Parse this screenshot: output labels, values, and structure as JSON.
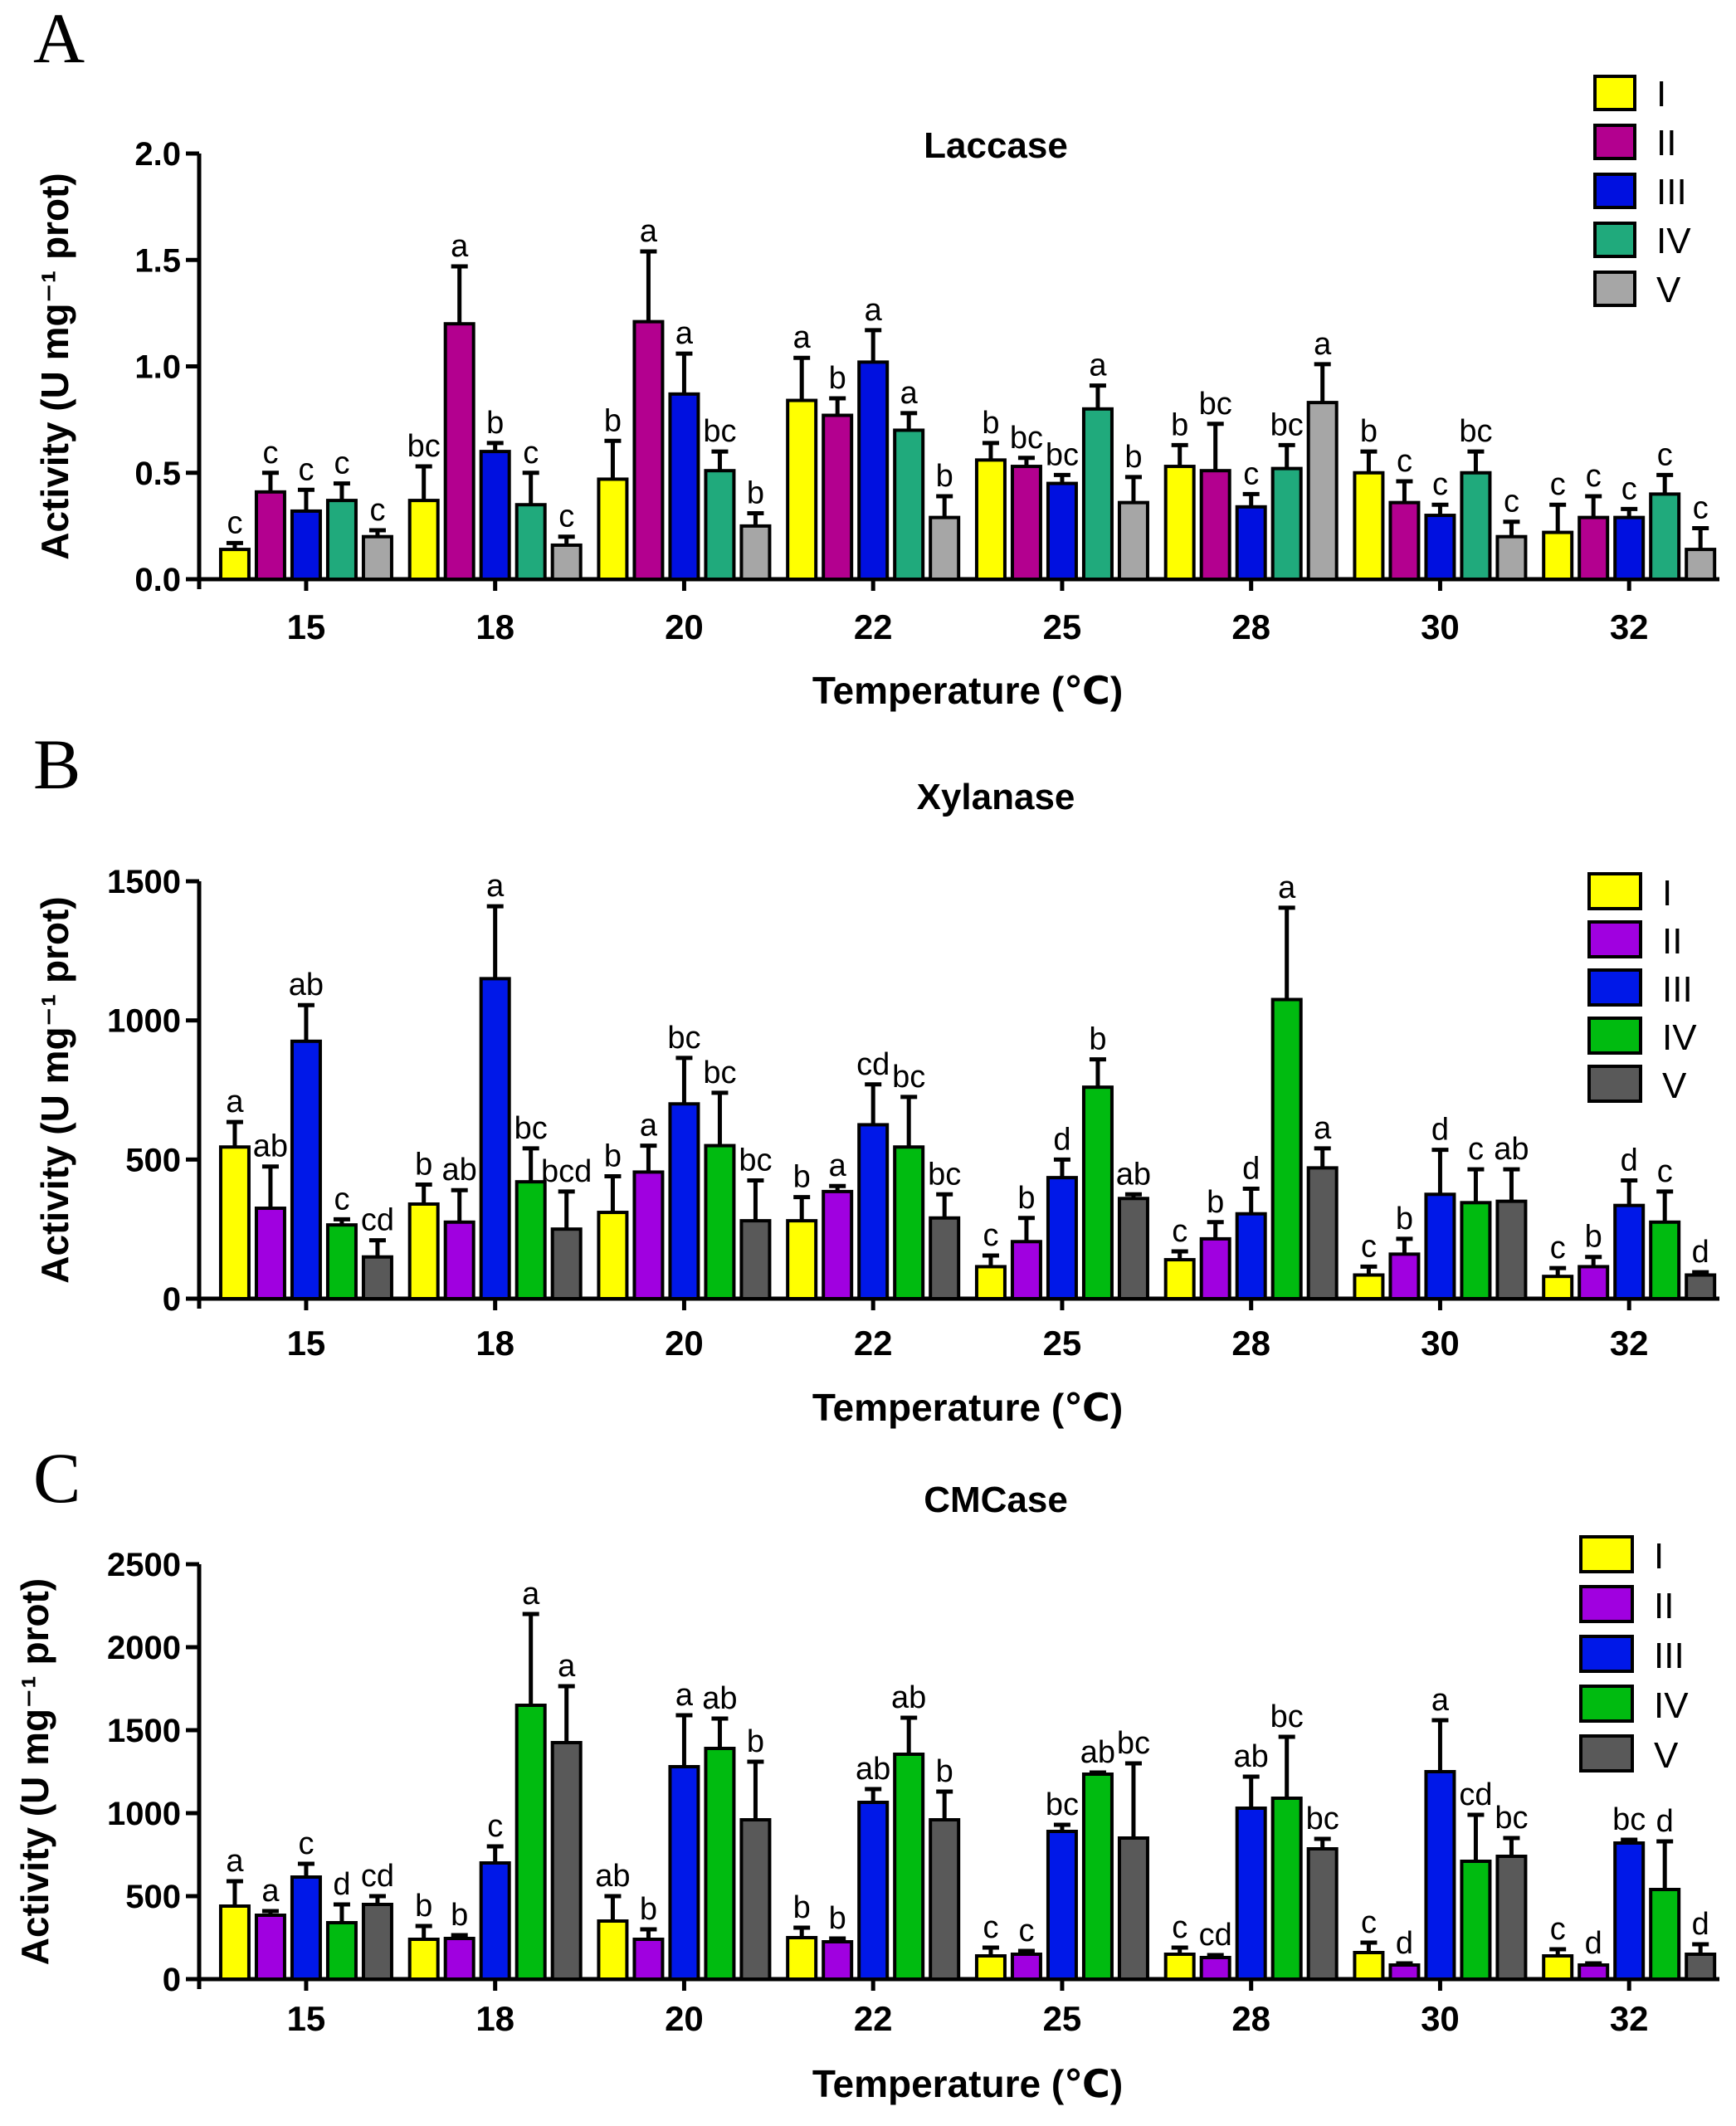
{
  "figure": {
    "series_colors": {
      "A": [
        "#ffff00",
        "#b3008f",
        "#0010e0",
        "#20aa7c",
        "#a6a6a6"
      ],
      "B": [
        "#ffff00",
        "#a000e0",
        "#0018e8",
        "#00bb10",
        "#595959"
      ],
      "C": [
        "#ffff00",
        "#a000e0",
        "#0018e8",
        "#00bb10",
        "#595959"
      ]
    }
  },
  "chart_data": [
    {
      "panel": "A",
      "type": "bar",
      "title": "Laccase",
      "xlabel": "Temperature (℃)",
      "ylabel": "Activity (U mg⁻¹ prot)",
      "ylim": [
        0,
        2.0
      ],
      "yticks": [
        "0.0",
        "0.5",
        "1.0",
        "1.5",
        "2.0"
      ],
      "categories": [
        "15",
        "18",
        "20",
        "22",
        "25",
        "28",
        "30",
        "32"
      ],
      "legend": [
        "I",
        "II",
        "III",
        "IV",
        "V"
      ],
      "series": [
        {
          "name": "I",
          "values": [
            0.14,
            0.37,
            0.47,
            0.84,
            0.56,
            0.53,
            0.5,
            0.22
          ],
          "errors": [
            0.03,
            0.16,
            0.18,
            0.2,
            0.08,
            0.1,
            0.1,
            0.13
          ],
          "labels": [
            "c",
            "bc",
            "b",
            "a",
            "b",
            "b",
            "b",
            "c"
          ]
        },
        {
          "name": "II",
          "values": [
            0.41,
            1.2,
            1.21,
            0.77,
            0.53,
            0.51,
            0.36,
            0.29
          ],
          "errors": [
            0.09,
            0.27,
            0.33,
            0.08,
            0.04,
            0.22,
            0.1,
            0.1
          ],
          "labels": [
            "c",
            "a",
            "a",
            "b",
            "bc",
            "bc",
            "c",
            "c"
          ]
        },
        {
          "name": "III",
          "values": [
            0.32,
            0.6,
            0.87,
            1.02,
            0.45,
            0.34,
            0.3,
            0.29
          ],
          "errors": [
            0.1,
            0.04,
            0.19,
            0.15,
            0.04,
            0.06,
            0.05,
            0.04
          ],
          "labels": [
            "c",
            "b",
            "a",
            "a",
            "bc",
            "c",
            "c",
            "c"
          ]
        },
        {
          "name": "IV",
          "values": [
            0.37,
            0.35,
            0.51,
            0.7,
            0.8,
            0.52,
            0.5,
            0.4
          ],
          "errors": [
            0.08,
            0.15,
            0.09,
            0.08,
            0.11,
            0.11,
            0.1,
            0.09
          ],
          "labels": [
            "c",
            "c",
            "bc",
            "a",
            "a",
            "bc",
            "bc",
            "c"
          ]
        },
        {
          "name": "V",
          "values": [
            0.2,
            0.16,
            0.25,
            0.29,
            0.36,
            0.83,
            0.2,
            0.14
          ],
          "errors": [
            0.03,
            0.04,
            0.06,
            0.1,
            0.12,
            0.18,
            0.07,
            0.1
          ],
          "labels": [
            "c",
            "c",
            "b",
            "b",
            "b",
            "a",
            "c",
            "c"
          ]
        }
      ]
    },
    {
      "panel": "B",
      "type": "bar",
      "title": "Xylanase",
      "xlabel": "Temperature (℃)",
      "ylabel": "Activity (U mg⁻¹ prot)",
      "ylim": [
        0,
        1500
      ],
      "yticks": [
        "0",
        "500",
        "1000",
        "1500"
      ],
      "categories": [
        "15",
        "18",
        "20",
        "22",
        "25",
        "28",
        "30",
        "32"
      ],
      "legend": [
        "I",
        "II",
        "III",
        "IV",
        "V"
      ],
      "series": [
        {
          "name": "I",
          "values": [
            545,
            340,
            310,
            280,
            115,
            140,
            85,
            80
          ],
          "errors": [
            90,
            70,
            130,
            85,
            40,
            30,
            30,
            30
          ],
          "labels": [
            "a",
            "b",
            "b",
            "b",
            "c",
            "c",
            "c",
            "c"
          ]
        },
        {
          "name": "II",
          "values": [
            325,
            275,
            455,
            385,
            205,
            215,
            160,
            115
          ],
          "errors": [
            150,
            115,
            95,
            20,
            85,
            60,
            55,
            35
          ],
          "labels": [
            "ab",
            "ab",
            "a",
            "a",
            "b",
            "b",
            "b",
            "b"
          ]
        },
        {
          "name": "III",
          "values": [
            925,
            1150,
            700,
            625,
            435,
            305,
            375,
            335
          ],
          "errors": [
            130,
            260,
            165,
            145,
            65,
            90,
            160,
            90
          ],
          "labels": [
            "ab",
            "a",
            "bc",
            "cd",
            "d",
            "d",
            "d",
            "d"
          ]
        },
        {
          "name": "IV",
          "values": [
            265,
            420,
            550,
            545,
            760,
            1075,
            345,
            275
          ],
          "errors": [
            20,
            120,
            190,
            180,
            100,
            330,
            120,
            110
          ],
          "labels": [
            "c",
            "bc",
            "bc",
            "bc",
            "b",
            "a",
            "c",
            "c"
          ]
        },
        {
          "name": "V",
          "values": [
            150,
            250,
            280,
            290,
            360,
            470,
            350,
            85
          ],
          "errors": [
            60,
            135,
            145,
            85,
            15,
            70,
            115,
            10
          ],
          "labels": [
            "cd",
            "bcd",
            "bc",
            "bc",
            "ab",
            "a",
            "ab",
            "d"
          ]
        }
      ]
    },
    {
      "panel": "C",
      "type": "bar",
      "title": "CMCase",
      "xlabel": "Temperature (℃)",
      "ylabel": "Activity (U mg⁻¹ prot)",
      "ylim": [
        0,
        2500
      ],
      "yticks": [
        "0",
        "500",
        "1000",
        "1500",
        "2000",
        "2500"
      ],
      "categories": [
        "15",
        "18",
        "20",
        "22",
        "25",
        "28",
        "30",
        "32"
      ],
      "legend": [
        "I",
        "II",
        "III",
        "IV",
        "V"
      ],
      "series": [
        {
          "name": "I",
          "values": [
            440,
            240,
            350,
            250,
            140,
            150,
            160,
            140
          ],
          "errors": [
            150,
            80,
            150,
            60,
            50,
            40,
            60,
            40
          ],
          "labels": [
            "a",
            "b",
            "ab",
            "b",
            "c",
            "c",
            "c",
            "c"
          ]
        },
        {
          "name": "II",
          "values": [
            385,
            245,
            240,
            225,
            150,
            130,
            85,
            85
          ],
          "errors": [
            25,
            20,
            60,
            20,
            20,
            15,
            10,
            10
          ],
          "labels": [
            "a",
            "b",
            "b",
            "b",
            "c",
            "cd",
            "d",
            "d"
          ]
        },
        {
          "name": "III",
          "values": [
            615,
            700,
            1280,
            1065,
            890,
            1030,
            1250,
            820
          ],
          "errors": [
            80,
            100,
            310,
            80,
            40,
            190,
            310,
            20
          ],
          "labels": [
            "c",
            "c",
            "a",
            "ab",
            "bc",
            "ab",
            "a",
            "bc"
          ]
        },
        {
          "name": "IV",
          "values": [
            340,
            1650,
            1390,
            1355,
            1235,
            1090,
            710,
            540
          ],
          "errors": [
            110,
            550,
            180,
            220,
            10,
            370,
            280,
            290
          ],
          "labels": [
            "d",
            "a",
            "ab",
            "ab",
            "ab",
            "bc",
            "cd",
            "d"
          ]
        },
        {
          "name": "V",
          "values": [
            450,
            1425,
            960,
            960,
            850,
            785,
            740,
            150
          ],
          "errors": [
            50,
            340,
            350,
            170,
            450,
            60,
            110,
            60
          ],
          "labels": [
            "cd",
            "a",
            "b",
            "b",
            "bc",
            "bc",
            "bc",
            "d"
          ]
        }
      ]
    }
  ]
}
